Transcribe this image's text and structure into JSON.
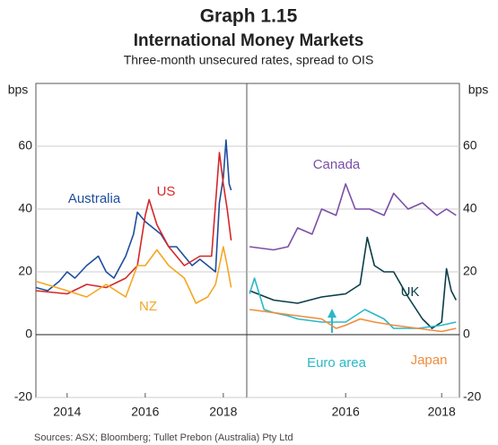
{
  "title": "Graph 1.15",
  "subtitle": "International Money Markets",
  "note": "Three-month unsecured rates, spread to OIS",
  "source": "Sources: ASX; Bloomberg; Tullet Prebon (Australia) Pty Ltd",
  "chart_data": [
    {
      "type": "line",
      "y_label": "bps",
      "xlim": [
        2013.2,
        2018.6
      ],
      "xticks": [
        2014,
        2016,
        2018
      ],
      "ylim": [
        -20,
        80
      ],
      "yticks": [
        -20,
        0,
        20,
        40,
        60
      ],
      "grid": true,
      "series": [
        {
          "name": "Australia",
          "color": "#1f4e9c",
          "x": [
            2013.2,
            2013.5,
            2013.8,
            2014.0,
            2014.2,
            2014.5,
            2014.8,
            2015.0,
            2015.2,
            2015.5,
            2015.7,
            2015.8,
            2016.0,
            2016.2,
            2016.4,
            2016.6,
            2016.8,
            2017.0,
            2017.2,
            2017.4,
            2017.6,
            2017.8,
            2017.9,
            2018.0,
            2018.07,
            2018.15,
            2018.2
          ],
          "values": [
            15,
            14,
            17,
            20,
            18,
            22,
            25,
            20,
            18,
            25,
            32,
            39,
            36,
            34,
            32,
            28,
            28,
            25,
            22,
            24,
            22,
            20,
            42,
            50,
            62,
            48,
            46
          ]
        },
        {
          "name": "US",
          "color": "#d62728",
          "x": [
            2013.2,
            2014.0,
            2014.5,
            2015.0,
            2015.5,
            2015.8,
            2016.0,
            2016.1,
            2016.3,
            2016.6,
            2017.0,
            2017.4,
            2017.7,
            2017.9,
            2018.0,
            2018.1,
            2018.2
          ],
          "values": [
            14,
            13,
            16,
            15,
            18,
            22,
            38,
            43,
            35,
            28,
            22,
            25,
            25,
            58,
            48,
            40,
            30
          ]
        },
        {
          "name": "NZ",
          "color": "#f5a623",
          "x": [
            2013.2,
            2014.0,
            2014.5,
            2015.0,
            2015.5,
            2015.8,
            2016.0,
            2016.3,
            2016.6,
            2017.0,
            2017.3,
            2017.6,
            2017.8,
            2018.0,
            2018.1,
            2018.2
          ],
          "values": [
            17,
            14,
            12,
            16,
            12,
            22,
            22,
            27,
            22,
            18,
            10,
            12,
            16,
            28,
            22,
            15
          ]
        }
      ]
    },
    {
      "type": "line",
      "y_label": "bps",
      "xlim": [
        2013.94,
        2018.37
      ],
      "xticks": [
        2016,
        2018
      ],
      "ylim": [
        -20,
        80
      ],
      "yticks": [
        -20,
        0,
        20,
        40,
        60
      ],
      "grid": true,
      "series": [
        {
          "name": "Canada",
          "color": "#7b4fa6",
          "x": [
            2014.0,
            2014.5,
            2014.8,
            2015.0,
            2015.3,
            2015.5,
            2015.8,
            2016.0,
            2016.2,
            2016.5,
            2016.8,
            2017.0,
            2017.3,
            2017.6,
            2017.9,
            2018.1,
            2018.3
          ],
          "values": [
            28,
            27,
            28,
            34,
            32,
            40,
            38,
            48,
            40,
            40,
            38,
            45,
            40,
            42,
            38,
            40,
            38
          ]
        },
        {
          "name": "UK",
          "color": "#0b3d4a",
          "x": [
            2014.0,
            2014.5,
            2015.0,
            2015.5,
            2016.0,
            2016.3,
            2016.45,
            2016.6,
            2016.8,
            2017.0,
            2017.3,
            2017.6,
            2017.8,
            2018.0,
            2018.1,
            2018.2,
            2018.3
          ],
          "values": [
            14,
            11,
            10,
            12,
            13,
            16,
            31,
            22,
            20,
            20,
            12,
            5,
            2,
            4,
            21,
            14,
            11
          ]
        },
        {
          "name": "Euro area",
          "color": "#2bb8c8",
          "x": [
            2014.0,
            2014.1,
            2014.3,
            2014.5,
            2014.8,
            2015.0,
            2015.5,
            2016.0,
            2016.4,
            2016.8,
            2017.0,
            2017.5,
            2018.0,
            2018.3
          ],
          "values": [
            13,
            18,
            8,
            7,
            6,
            5,
            4,
            4,
            8,
            5,
            2,
            2,
            3,
            4
          ]
        },
        {
          "name": "Japan",
          "color": "#f08c3c",
          "x": [
            2014.0,
            2014.5,
            2015.0,
            2015.5,
            2015.8,
            2016.0,
            2016.3,
            2016.6,
            2017.0,
            2017.5,
            2018.0,
            2018.3
          ],
          "values": [
            8,
            7,
            6,
            5,
            2,
            3,
            5,
            4,
            3,
            2,
            1,
            2
          ]
        }
      ]
    }
  ]
}
